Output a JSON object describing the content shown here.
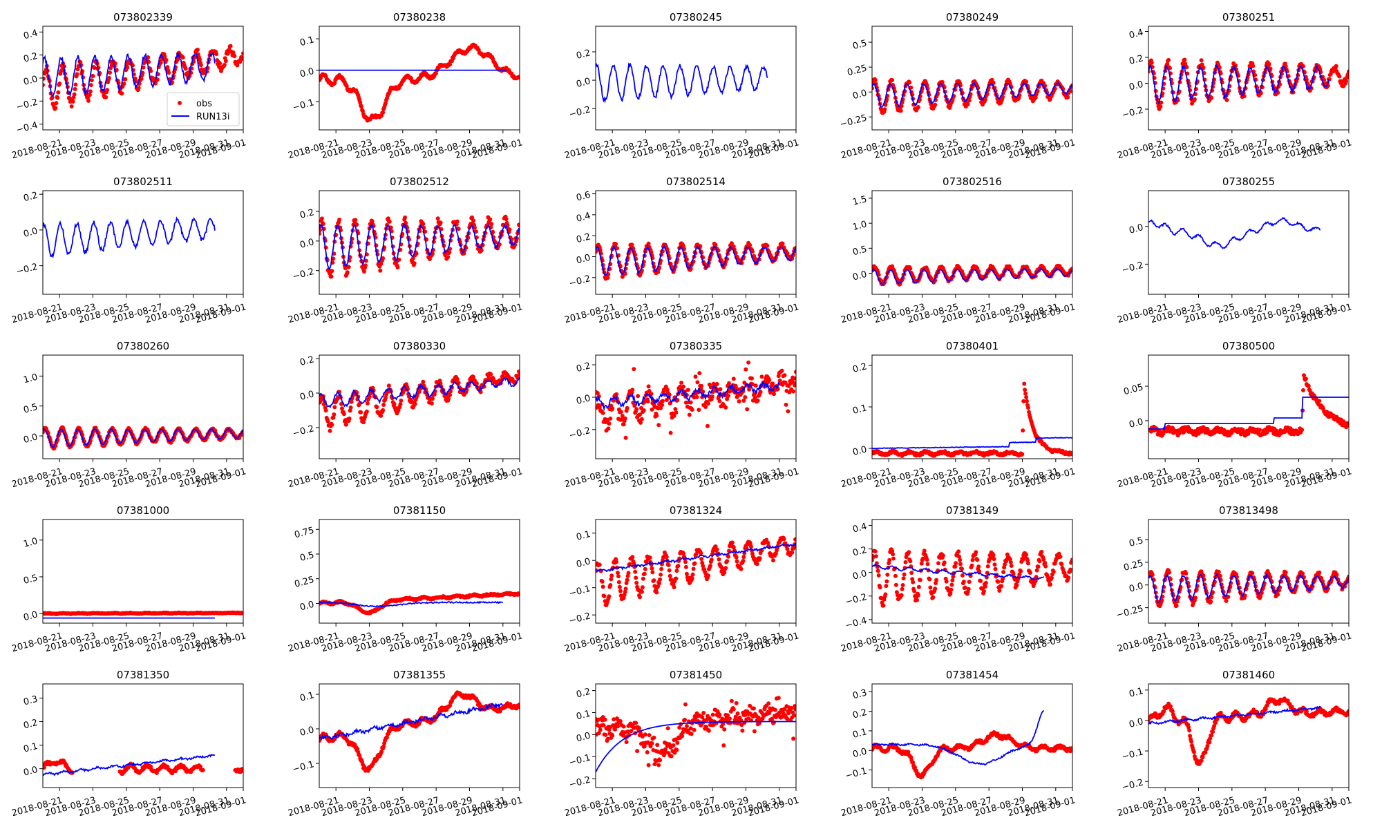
{
  "figure": {
    "xtick_labels": [
      "2018-08-21",
      "2018-08-23",
      "2018-08-25",
      "2018-08-27",
      "2018-08-29",
      "2018-08-31",
      "2018-09-01"
    ],
    "legend": {
      "obs_label": "obs",
      "model_label": "RUN13i",
      "placement": "lower-right of first panel"
    },
    "colors": {
      "obs": "#ff0000",
      "model": "#0000ff",
      "axes": "#000000",
      "background": "#ffffff"
    }
  },
  "chart_data": [
    {
      "type": "scatter",
      "title": "073802339",
      "ylim": [
        -0.45,
        0.45
      ],
      "yticks": [
        -0.4,
        -0.2,
        0.0,
        0.2,
        0.4
      ],
      "xlim": [
        0,
        12
      ],
      "model": {
        "base": 0.0,
        "trend": 0.12,
        "amp0": 0.17,
        "amp1": 0.1,
        "period": 1.0,
        "phase": 0.15,
        "end": 10.3,
        "noise": 0.02
      },
      "obs": {
        "base": -0.1,
        "trend": 0.3,
        "amp0": 0.18,
        "amp1": 0.07,
        "period": 1.0,
        "phase": 0.05,
        "start": 0.0,
        "end": 12.0,
        "noise": 0.03,
        "gap": []
      }
    },
    {
      "type": "scatter",
      "title": "07380238",
      "ylim": [
        -0.19,
        0.14
      ],
      "yticks": [
        -0.1,
        0.0,
        0.1
      ],
      "xlim": [
        0,
        12
      ],
      "model": {
        "base": 0.0,
        "trend": 0,
        "amp0": 0,
        "amp1": 0,
        "period": 1,
        "phase": 0,
        "end": 11.2,
        "noise": 0
      },
      "obs": {
        "base": -0.03,
        "trend": 0,
        "amp0": 0.015,
        "amp1": 0.008,
        "period": 1.0,
        "phase": 0.0,
        "start": 0.0,
        "end": 12.0,
        "noise": 0.004,
        "gap": [],
        "bumps": [
          [
            3.2,
            -0.13,
            1.7
          ],
          [
            9.1,
            0.1,
            3.0
          ]
        ]
      }
    },
    {
      "type": "scatter",
      "title": "07380245",
      "ylim": [
        -0.35,
        0.38
      ],
      "yticks": [
        -0.2,
        0.0,
        0.2
      ],
      "xlim": [
        0,
        12
      ],
      "model": {
        "base": -0.02,
        "trend": 0.04,
        "amp0": 0.13,
        "amp1": 0.07,
        "period": 1.0,
        "phase": 0.2,
        "end": 10.3,
        "noise": 0.015
      },
      "obs": null
    },
    {
      "type": "scatter",
      "title": "07380249",
      "ylim": [
        -0.38,
        0.66
      ],
      "yticks": [
        -0.25,
        0.0,
        0.25,
        0.5
      ],
      "xlim": [
        0,
        12
      ],
      "model": {
        "base": -0.04,
        "trend": 0.08,
        "amp0": 0.12,
        "amp1": 0.05,
        "period": 1.0,
        "phase": 0.15,
        "end": 12.0,
        "noise": 0.01
      },
      "obs": {
        "base": -0.05,
        "trend": 0.08,
        "amp0": 0.16,
        "amp1": 0.07,
        "period": 1.0,
        "phase": 0.1,
        "start": 0.0,
        "end": 12.0,
        "noise": 0.02,
        "gap": []
      }
    },
    {
      "type": "scatter",
      "title": "07380251",
      "ylim": [
        -0.36,
        0.44
      ],
      "yticks": [
        -0.2,
        0.0,
        0.2,
        0.4
      ],
      "xlim": [
        0,
        12
      ],
      "model": {
        "base": -0.01,
        "trend": 0.06,
        "amp0": 0.14,
        "amp1": 0.07,
        "period": 1.0,
        "phase": 0.15,
        "end": 10.8,
        "noise": 0.015
      },
      "obs": {
        "base": -0.01,
        "trend": 0.07,
        "amp0": 0.18,
        "amp1": 0.06,
        "period": 1.0,
        "phase": 0.1,
        "start": 0.0,
        "end": 12.0,
        "noise": 0.025,
        "gap": []
      }
    },
    {
      "type": "scatter",
      "title": "073802511",
      "ylim": [
        -0.36,
        0.22
      ],
      "yticks": [
        -0.2,
        0.0,
        0.2
      ],
      "xlim": [
        0,
        12
      ],
      "model": {
        "base": -0.06,
        "trend": 0.08,
        "amp0": 0.09,
        "amp1": 0.05,
        "period": 1.0,
        "phase": 0.2,
        "end": 10.3,
        "noise": 0.012
      },
      "obs": null
    },
    {
      "type": "scatter",
      "title": "073802512",
      "ylim": [
        -0.36,
        0.34
      ],
      "yticks": [
        -0.2,
        0.0,
        0.2
      ],
      "xlim": [
        0,
        12
      ],
      "model": {
        "base": -0.04,
        "trend": 0.08,
        "amp0": 0.15,
        "amp1": 0.06,
        "period": 1.0,
        "phase": 0.15,
        "end": 12.0,
        "noise": 0.012
      },
      "obs": {
        "base": -0.06,
        "trend": 0.12,
        "amp0": 0.19,
        "amp1": 0.08,
        "period": 1.0,
        "phase": 0.1,
        "start": 0.0,
        "end": 12.0,
        "noise": 0.025,
        "gap": []
      }
    },
    {
      "type": "scatter",
      "title": "073802514",
      "ylim": [
        -0.36,
        0.63
      ],
      "yticks": [
        -0.2,
        0.0,
        0.2,
        0.4,
        0.6
      ],
      "xlim": [
        0,
        12
      ],
      "model": {
        "base": -0.05,
        "trend": 0.08,
        "amp0": 0.14,
        "amp1": 0.06,
        "period": 1.0,
        "phase": 0.15,
        "end": 12.0,
        "noise": 0.012
      },
      "obs": {
        "base": -0.05,
        "trend": 0.1,
        "amp0": 0.16,
        "amp1": 0.06,
        "period": 1.0,
        "phase": 0.1,
        "start": 0.0,
        "end": 12.0,
        "noise": 0.02,
        "gap": []
      }
    },
    {
      "type": "scatter",
      "title": "073802516",
      "ylim": [
        -0.42,
        1.65
      ],
      "yticks": [
        0.0,
        0.5,
        1.0,
        1.5
      ],
      "xlim": [
        0,
        12
      ],
      "model": {
        "base": -0.08,
        "trend": 0.1,
        "amp0": 0.15,
        "amp1": 0.07,
        "period": 1.0,
        "phase": 0.15,
        "end": 12.0,
        "noise": 0.012
      },
      "obs": {
        "base": -0.05,
        "trend": 0.1,
        "amp0": 0.17,
        "amp1": 0.08,
        "period": 1.0,
        "phase": 0.1,
        "start": 0.0,
        "end": 12.0,
        "noise": 0.03,
        "gap": []
      }
    },
    {
      "type": "scatter",
      "title": "07380255",
      "ylim": [
        -0.36,
        0.19
      ],
      "yticks": [
        -0.2,
        0.0
      ],
      "xlim": [
        0,
        12
      ],
      "model": {
        "base": -0.02,
        "trend": 0,
        "amp0": 0.02,
        "amp1": 0.01,
        "period": 1.0,
        "phase": 0.2,
        "end": 10.3,
        "noise": 0.005,
        "bumps": [
          [
            0.4,
            0.04,
            1.0
          ],
          [
            4.2,
            -0.08,
            2.5
          ],
          [
            8.0,
            0.05,
            2.0
          ]
        ]
      },
      "obs": null
    },
    {
      "type": "scatter",
      "title": "07380260",
      "ylim": [
        -0.38,
        1.35
      ],
      "yticks": [
        0.0,
        0.5,
        1.0
      ],
      "xlim": [
        0,
        12
      ],
      "model": {
        "base": -0.04,
        "trend": 0.08,
        "amp0": 0.15,
        "amp1": 0.07,
        "period": 1.0,
        "phase": 0.15,
        "end": 12.0,
        "noise": 0.01
      },
      "obs": {
        "base": -0.04,
        "trend": 0.08,
        "amp0": 0.17,
        "amp1": 0.07,
        "period": 1.0,
        "phase": 0.1,
        "start": 0.0,
        "end": 12.0,
        "noise": 0.02,
        "gap": []
      }
    },
    {
      "type": "scatter",
      "title": "07380330",
      "ylim": [
        -0.38,
        0.22
      ],
      "yticks": [
        -0.2,
        0.0,
        0.2
      ],
      "xlim": [
        0,
        12
      ],
      "model": {
        "base": -0.05,
        "trend": 0.12,
        "amp0": 0.04,
        "amp1": 0.02,
        "period": 1.0,
        "phase": 0.15,
        "end": 12.0,
        "noise": 0.01
      },
      "obs": {
        "base": -0.12,
        "trend": 0.22,
        "amp0": 0.1,
        "amp1": 0.02,
        "period": 1.0,
        "phase": 0.1,
        "start": 0.0,
        "end": 12.0,
        "noise": 0.02,
        "gap": []
      }
    },
    {
      "type": "scatter",
      "title": "07380335",
      "ylim": [
        -0.38,
        0.26
      ],
      "yticks": [
        -0.2,
        0.0,
        0.2
      ],
      "xlim": [
        0,
        12
      ],
      "model": {
        "base": -0.04,
        "trend": 0.12,
        "amp0": 0.03,
        "amp1": 0.02,
        "period": 1.0,
        "phase": 0.15,
        "end": 11.0,
        "noise": 0.015
      },
      "obs": {
        "base": -0.1,
        "trend": 0.2,
        "amp0": 0.08,
        "amp1": 0.03,
        "period": 1.0,
        "phase": 0.1,
        "start": 0.0,
        "end": 12.0,
        "noise": 0.05,
        "gap": [],
        "scatter": true
      }
    },
    {
      "type": "scatter",
      "title": "07380401",
      "ylim": [
        -0.025,
        0.225
      ],
      "yticks": [
        0.0,
        0.1,
        0.2
      ],
      "xlim": [
        0,
        12
      ],
      "model": {
        "base": 0.0,
        "trend": 0.006,
        "amp0": 0.0,
        "amp1": 0.0,
        "period": 1.0,
        "phase": 0.0,
        "end": 12.0,
        "noise": 0.0008,
        "steps": [
          [
            8.2,
            0.01
          ],
          [
            9.8,
            0.01
          ]
        ]
      },
      "obs": {
        "base": -0.012,
        "trend": 0.0,
        "amp0": 0.004,
        "amp1": 0.002,
        "period": 1.0,
        "phase": 0.0,
        "start": 0.0,
        "end": 12.0,
        "noise": 0.003,
        "gap": [],
        "spike": [
          9.0,
          0.2,
          0.55
        ]
      }
    },
    {
      "type": "scatter",
      "title": "07380500",
      "ylim": [
        -0.055,
        0.095
      ],
      "yticks": [
        0.0,
        0.05
      ],
      "xlim": [
        0,
        12
      ],
      "model": {
        "base": -0.012,
        "trend": 0.0,
        "amp0": 0.0,
        "amp1": 0.0,
        "period": 1.0,
        "phase": 0.0,
        "end": 12.0,
        "noise": 0.0,
        "steps": [
          [
            1.0,
            0.008
          ],
          [
            7.5,
            0.008
          ],
          [
            9.2,
            0.03
          ]
        ]
      },
      "obs": {
        "base": -0.015,
        "trend": 0.0,
        "amp0": 0.003,
        "amp1": 0.002,
        "period": 1.0,
        "phase": 0.0,
        "start": 0.0,
        "end": 12.0,
        "noise": 0.004,
        "gap": [],
        "spike": [
          9.2,
          0.085,
          1.3
        ]
      }
    },
    {
      "type": "scatter",
      "title": "07381000",
      "ylim": [
        -0.13,
        1.28
      ],
      "yticks": [
        0.0,
        0.5,
        1.0
      ],
      "xlim": [
        0,
        12
      ],
      "model": {
        "base": -0.06,
        "trend": 0,
        "amp0": 0,
        "amp1": 0,
        "period": 1,
        "phase": 0,
        "end": 10.3,
        "noise": 0
      },
      "obs": {
        "base": 0.0,
        "trend": 0.01,
        "amp0": 0.004,
        "amp1": 0.002,
        "period": 1.0,
        "phase": 0.0,
        "start": 0.0,
        "end": 12.0,
        "noise": 0.005,
        "gap": []
      }
    },
    {
      "type": "scatter",
      "title": "07381150",
      "ylim": [
        -0.2,
        0.85
      ],
      "yticks": [
        0.0,
        0.25,
        0.5,
        0.75
      ],
      "xlim": [
        0,
        12
      ],
      "model": {
        "base": 0.01,
        "trend": 0.0,
        "amp0": 0.0,
        "amp1": 0.0,
        "period": 1.0,
        "phase": 0.0,
        "end": 11.0,
        "noise": 0.006,
        "bumps": [
          [
            3.5,
            -0.04,
            3.0
          ]
        ]
      },
      "obs": {
        "base": 0.0,
        "trend": 0.1,
        "amp0": 0.01,
        "amp1": 0.005,
        "period": 1.0,
        "phase": 0.0,
        "start": 0.0,
        "end": 12.0,
        "noise": 0.008,
        "gap": [],
        "bumps": [
          [
            3.0,
            -0.12,
            1.5
          ]
        ]
      }
    },
    {
      "type": "scatter",
      "title": "07381324",
      "ylim": [
        -0.23,
        0.15
      ],
      "yticks": [
        -0.2,
        -0.1,
        0.0,
        0.1
      ],
      "xlim": [
        0,
        12
      ],
      "model": {
        "base": -0.04,
        "trend": 0.1,
        "amp0": 0.003,
        "amp1": 0.002,
        "period": 1.0,
        "phase": 0.0,
        "end": 12.0,
        "noise": 0.004
      },
      "obs": {
        "base": -0.09,
        "trend": 0.15,
        "amp0": 0.08,
        "amp1": 0.03,
        "period": 1.0,
        "phase": 0.1,
        "start": 0.0,
        "end": 12.0,
        "noise": 0.01,
        "gap": []
      }
    },
    {
      "type": "scatter",
      "title": "07381349",
      "ylim": [
        -0.43,
        0.45
      ],
      "yticks": [
        -0.4,
        -0.2,
        0.0,
        0.2,
        0.4
      ],
      "xlim": [
        0,
        12
      ],
      "model": {
        "base": 0.05,
        "trend": -0.12,
        "amp0": 0.015,
        "amp1": 0.008,
        "period": 1.0,
        "phase": 0.0,
        "end": 10.3,
        "noise": 0.006
      },
      "obs": {
        "base": -0.05,
        "trend": 0.1,
        "amp0": 0.22,
        "amp1": 0.1,
        "period": 1.0,
        "phase": 0.1,
        "start": 0.0,
        "end": 12.0,
        "noise": 0.03,
        "gap": []
      }
    },
    {
      "type": "scatter",
      "title": "073813498",
      "ylim": [
        -0.42,
        0.72
      ],
      "yticks": [
        -0.25,
        0.0,
        0.25,
        0.5
      ],
      "xlim": [
        0,
        12
      ],
      "model": {
        "base": -0.04,
        "trend": 0.08,
        "amp0": 0.15,
        "amp1": 0.06,
        "period": 1.0,
        "phase": 0.15,
        "end": 12.0,
        "noise": 0.015
      },
      "obs": {
        "base": -0.05,
        "trend": 0.1,
        "amp0": 0.2,
        "amp1": 0.07,
        "period": 1.0,
        "phase": 0.1,
        "start": 0.0,
        "end": 12.0,
        "noise": 0.025,
        "gap": []
      }
    },
    {
      "type": "scatter",
      "title": "07381350",
      "ylim": [
        -0.08,
        0.36
      ],
      "yticks": [
        0.0,
        0.1,
        0.2,
        0.3
      ],
      "xlim": [
        0,
        12
      ],
      "model": {
        "base": -0.025,
        "trend": 0.095,
        "amp0": 0.005,
        "amp1": 0.003,
        "period": 1.0,
        "phase": 0.0,
        "end": 10.3,
        "noise": 0.004
      },
      "obs": {
        "base": 0.0,
        "trend": 0.0,
        "amp0": 0.02,
        "amp1": 0.01,
        "period": 1.0,
        "phase": 0.0,
        "start": 0.0,
        "end": 12.0,
        "noise": 0.006,
        "gap": [
          [
            1.8,
            4.6
          ],
          [
            9.6,
            11.5
          ]
        ],
        "bumps": [
          [
            0.8,
            0.04,
            0.6
          ]
        ]
      }
    },
    {
      "type": "scatter",
      "title": "07381355",
      "ylim": [
        -0.17,
        0.13
      ],
      "yticks": [
        -0.1,
        0.0,
        0.1
      ],
      "xlim": [
        0,
        12
      ],
      "model": {
        "base": -0.03,
        "trend": 0.11,
        "amp0": 0.004,
        "amp1": 0.003,
        "period": 1.0,
        "phase": 0.0,
        "end": 11.0,
        "noise": 0.005
      },
      "obs": {
        "base": -0.03,
        "trend": 0.1,
        "amp0": 0.01,
        "amp1": 0.006,
        "period": 1.0,
        "phase": 0.0,
        "start": 0.0,
        "end": 12.0,
        "noise": 0.005,
        "gap": [],
        "bumps": [
          [
            3.0,
            -0.11,
            1.5
          ],
          [
            8.5,
            0.06,
            1.8
          ]
        ]
      }
    },
    {
      "type": "scatter",
      "title": "07381450",
      "ylim": [
        -0.24,
        0.23
      ],
      "yticks": [
        -0.2,
        -0.1,
        0.0,
        0.1,
        0.2
      ],
      "xlim": [
        0,
        12
      ],
      "model": {
        "base": -0.17,
        "trend": 0.27,
        "amp0": 0.003,
        "amp1": 0.002,
        "period": 1.0,
        "phase": 0.0,
        "end": 12.0,
        "noise": 0.003,
        "sat": [
          1.6,
          0.85
        ]
      },
      "obs": {
        "base": 0.02,
        "trend": 0.08,
        "amp0": 0.02,
        "amp1": 0.01,
        "period": 1.0,
        "phase": 0.0,
        "start": 0.0,
        "end": 12.0,
        "noise": 0.035,
        "gap": [],
        "scatter": true,
        "bumps": [
          [
            4.0,
            -0.14,
            1.8
          ]
        ]
      }
    },
    {
      "type": "scatter",
      "title": "07381454",
      "ylim": [
        -0.19,
        0.34
      ],
      "yticks": [
        -0.1,
        0.0,
        0.1,
        0.2,
        0.3
      ],
      "xlim": [
        0,
        12
      ],
      "model": {
        "base": 0.03,
        "trend": 0.0,
        "amp0": 0.003,
        "amp1": 0.002,
        "period": 1.0,
        "phase": 0.0,
        "end": 10.3,
        "noise": 0.004,
        "bumps": [
          [
            6.5,
            -0.1,
            3.0
          ],
          [
            10.3,
            0.17,
            0.9
          ]
        ]
      },
      "obs": {
        "base": 0.01,
        "trend": 0.0,
        "amp0": 0.015,
        "amp1": 0.008,
        "period": 1.0,
        "phase": 0.0,
        "start": 0.0,
        "end": 12.0,
        "noise": 0.008,
        "gap": [],
        "bumps": [
          [
            3.0,
            -0.14,
            1.2
          ],
          [
            7.5,
            0.07,
            2.0
          ]
        ]
      }
    },
    {
      "type": "scatter",
      "title": "07381460",
      "ylim": [
        -0.22,
        0.12
      ],
      "yticks": [
        -0.2,
        -0.1,
        0.0,
        0.1
      ],
      "xlim": [
        0,
        12
      ],
      "model": {
        "base": -0.01,
        "trend": 0.06,
        "amp0": 0.003,
        "amp1": 0.002,
        "period": 1.0,
        "phase": 0.0,
        "end": 10.3,
        "noise": 0.003
      },
      "obs": {
        "base": 0.0,
        "trend": 0.03,
        "amp0": 0.015,
        "amp1": 0.008,
        "period": 1.0,
        "phase": 0.0,
        "start": 0.0,
        "end": 12.0,
        "noise": 0.006,
        "gap": [],
        "bumps": [
          [
            3.1,
            -0.15,
            1.0
          ],
          [
            1.0,
            0.04,
            0.8
          ],
          [
            7.8,
            0.05,
            1.5
          ]
        ]
      }
    }
  ]
}
